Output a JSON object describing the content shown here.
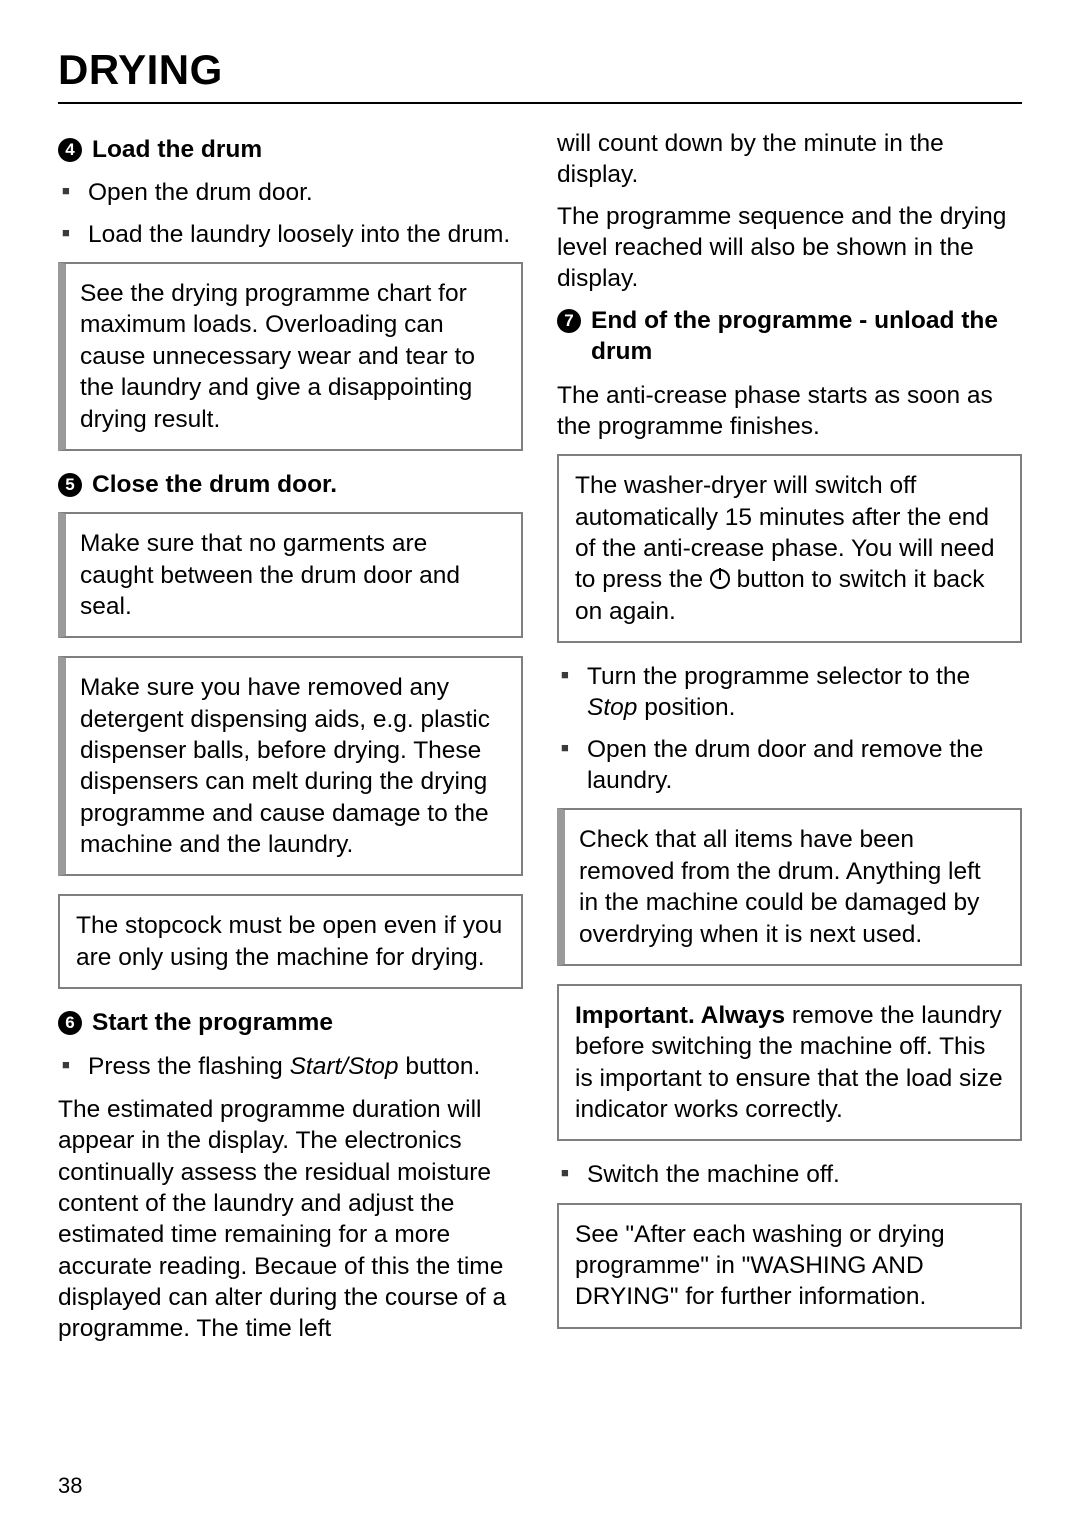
{
  "title": "DRYING",
  "page_number": "38",
  "left": {
    "s4": {
      "num": "4",
      "title": "Load the drum",
      "items": [
        "Open the drum door.",
        "Load the laundry loosely into the drum."
      ],
      "box1": "See the drying programme chart for maximum loads. Overloading can cause unnecessary wear and tear to the laundry and give a disappointing drying result."
    },
    "s5": {
      "num": "5",
      "title": "Close the drum door.",
      "box1": "Make sure that no garments are caught between the drum door and seal.",
      "box2": "Make sure you have removed any detergent dispensing aids, e.g. plastic dispenser balls, before drying. These dispensers can melt during the drying programme and cause damage to the machine and the laundry.",
      "box3": "The stopcock must be open even if you are only using the machine for drying."
    },
    "s6": {
      "num": "6",
      "title": "Start the programme",
      "item_prefix": "Press the flashing ",
      "item_italic": "Start/Stop",
      "item_suffix": " button.",
      "para": "The estimated programme duration will appear in the display. The electronics continually assess the residual moisture content of the laundry and adjust the estimated time remaining for a more accurate reading. Becaue of this the time displayed can alter during the course of a programme. The time left"
    }
  },
  "right": {
    "cont1": "will count down by the minute in the display.",
    "cont2": "The programme sequence and the drying level reached will also be shown in the display.",
    "s7": {
      "num": "7",
      "title": "End of the programme - unload the drum",
      "para": "The anti-crease phase starts as soon as the programme finishes.",
      "box1a": "The washer-dryer will switch off automatically 15 minutes after the end of the anti-crease phase. You will need to press the ",
      "box1b": " button to switch it back on again.",
      "item1_prefix": "Turn the programme selector to the ",
      "item1_italic": "Stop",
      "item1_suffix": " position.",
      "item2": "Open the drum door and remove the laundry.",
      "box2": "Check that all items have been removed from the drum.  Anything left in the machine could be damaged by overdrying when it is next used.",
      "box3_bold": "Important. Always",
      "box3_rest": " remove the laundry before switching the machine off. This is important to ensure that the load size indicator works correctly.",
      "item3": "Switch the machine off.",
      "box4": "See \"After each washing or drying programme\" in \"WASHING AND DRYING\" for further information."
    }
  }
}
